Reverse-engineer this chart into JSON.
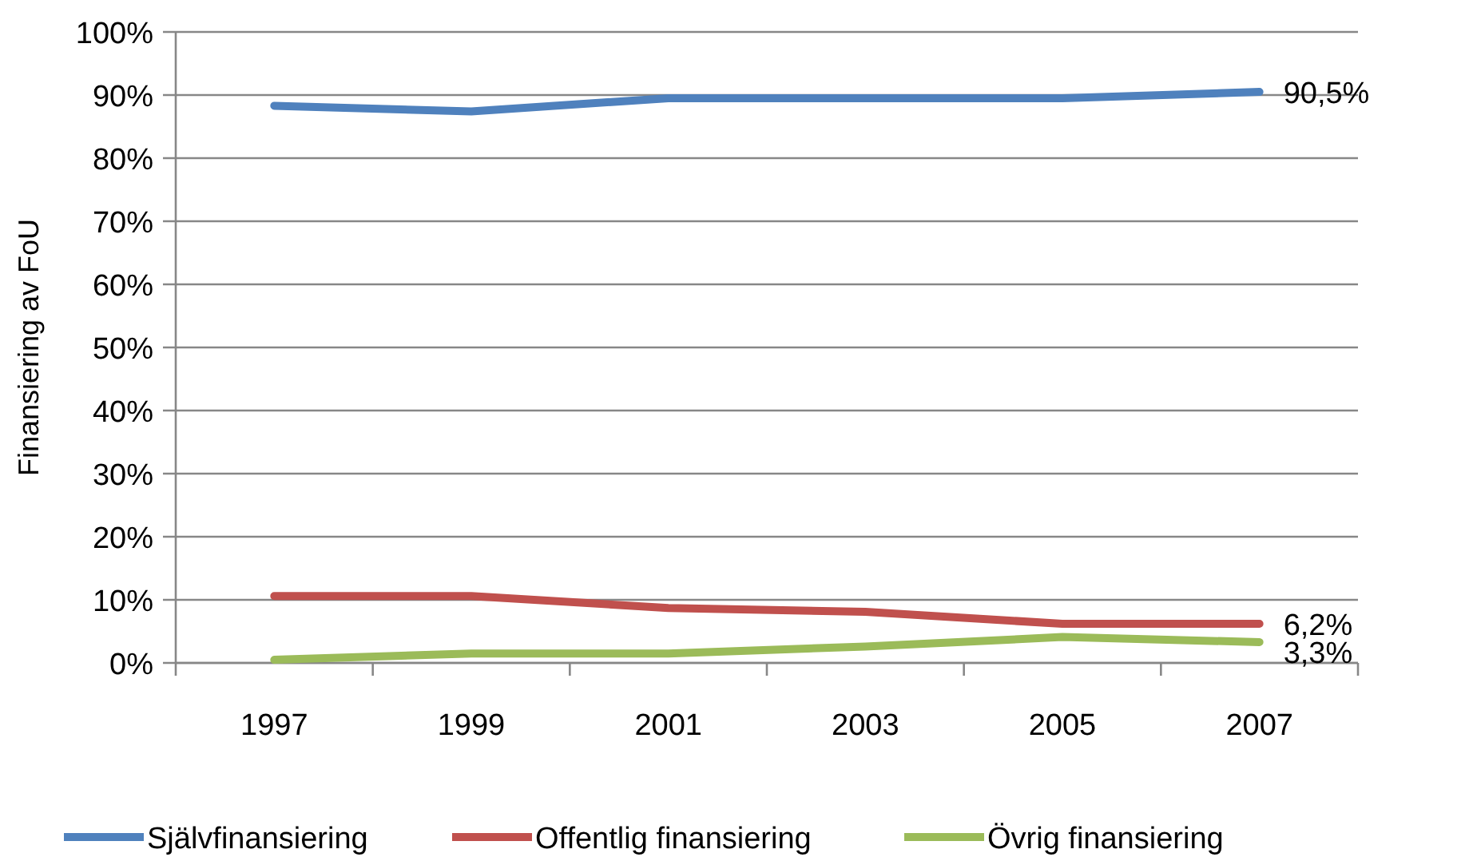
{
  "chart_data": {
    "type": "line",
    "ylabel": "Finansiering av FoU",
    "categories": [
      "1997",
      "1999",
      "2001",
      "2003",
      "2005",
      "2007"
    ],
    "series": [
      {
        "name": "Självfinansiering",
        "color": "#4f81bd",
        "values": [
          88.3,
          87.4,
          89.5,
          89.5,
          89.5,
          90.5
        ],
        "value_labels": [
          null,
          null,
          null,
          null,
          null,
          "90,5%"
        ]
      },
      {
        "name": "Offentlig finansiering",
        "color": "#c0504d",
        "values": [
          10.6,
          10.6,
          8.7,
          8.1,
          6.2,
          6.2
        ],
        "value_labels": [
          null,
          null,
          null,
          null,
          null,
          "6,2%"
        ]
      },
      {
        "name": "Övrig finansiering",
        "color": "#9bbb59",
        "values": [
          0.5,
          1.5,
          1.5,
          2.6,
          4.1,
          3.3
        ],
        "value_labels": [
          null,
          null,
          null,
          null,
          null,
          "3,3%"
        ]
      }
    ],
    "ylim": [
      0,
      100
    ],
    "yticks": [
      {
        "value": 0,
        "label": "0%"
      },
      {
        "value": 10,
        "label": "10%"
      },
      {
        "value": 20,
        "label": "20%"
      },
      {
        "value": 30,
        "label": "30%"
      },
      {
        "value": 40,
        "label": "40%"
      },
      {
        "value": 50,
        "label": "50%"
      },
      {
        "value": 60,
        "label": "60%"
      },
      {
        "value": 70,
        "label": "70%"
      },
      {
        "value": 80,
        "label": "80%"
      },
      {
        "value": 90,
        "label": "90%"
      },
      {
        "value": 100,
        "label": "100%"
      }
    ],
    "grid": "y",
    "legend": "bottom",
    "marker": "none",
    "line_style": "solid"
  }
}
